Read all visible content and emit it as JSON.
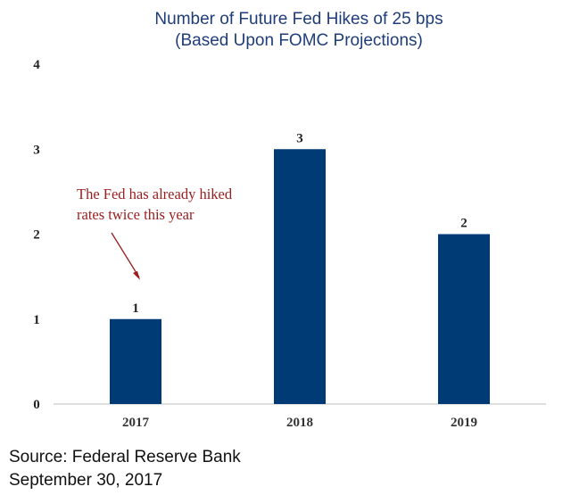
{
  "chart_data": {
    "type": "bar",
    "title": "Number of Future Fed Hikes of 25 bps",
    "subtitle": "(Based Upon FOMC Projections)",
    "categories": [
      "2017",
      "2018",
      "2019"
    ],
    "values": [
      1,
      3,
      2
    ],
    "data_labels": [
      "1",
      "3",
      "2"
    ],
    "ylim": [
      0,
      4
    ],
    "yticks": [
      "0",
      "1",
      "2",
      "3",
      "4"
    ],
    "xlabel": "",
    "ylabel": "",
    "grid": false,
    "bar_color": "#003b75",
    "annotation": {
      "lines": [
        "The Fed has already hiked",
        "rates twice this year"
      ],
      "color": "#9a1c1c",
      "points_to": "2017"
    }
  },
  "footer": {
    "source": "Source: Federal Reserve Bank",
    "date": "September 30, 2017"
  }
}
